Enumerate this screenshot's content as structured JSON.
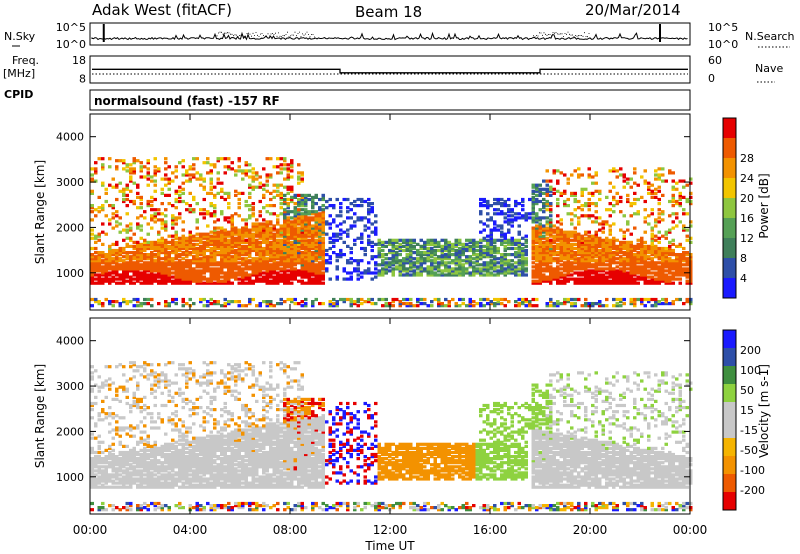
{
  "header": {
    "station": "Adak West (fitACF)",
    "beam": "Beam 18",
    "date": "20/Mar/2014"
  },
  "side_labels": {
    "nsky": "N.Sky",
    "nsearch": "N.Search",
    "freq": "Freq.",
    "freq_unit": "[MHz]",
    "nave": "Nave",
    "cpid": "CPID"
  },
  "cpid_text": "normalsound (fast) -157 RF",
  "colors": {
    "power_scale": [
      "#1a1aff",
      "#2e4fa8",
      "#3f7f5a",
      "#55a055",
      "#8ec63f",
      "#f2c500",
      "#f39200",
      "#ee5a00",
      "#e60000"
    ],
    "velocity_scale": [
      "#e60000",
      "#ee5a00",
      "#f39200",
      "#f5b400",
      "#c8c8c8",
      "#c8c8c8",
      "#8ed23f",
      "#3f8f3f",
      "#2e4fa8",
      "#1a1aff"
    ],
    "gray": "#c8c8c8"
  },
  "chart_data": [
    {
      "type": "line",
      "panel": "noise",
      "left_ticks": [
        "10^5",
        "10^0"
      ],
      "right_ticks": [
        "10^5",
        "10^0"
      ]
    },
    {
      "type": "line",
      "panel": "frequency",
      "left_ticks": [
        "18",
        "8"
      ],
      "right_ticks": [
        "60",
        "0"
      ],
      "series": [
        {
          "x": [
            "00:00",
            "10:00",
            "10:00",
            "18:00",
            "18:00",
            "24:00"
          ],
          "values": [
            12.9,
            12.9,
            11.0,
            11.0,
            12.9,
            12.9
          ]
        }
      ]
    },
    {
      "type": "heatmap",
      "panel": "power",
      "ylabel": "Slant Range [km]",
      "ylim": [
        180,
        4500
      ],
      "yticks": [
        "1000",
        "2000",
        "3000",
        "4000"
      ],
      "colorbar_label": "Power [dB]",
      "colorbar_ticks": [
        "4",
        "8",
        "12",
        "16",
        "20",
        "24",
        "28"
      ]
    },
    {
      "type": "heatmap",
      "panel": "velocity",
      "ylabel": "Slant Range [km]",
      "ylim": [
        180,
        4500
      ],
      "yticks": [
        "1000",
        "2000",
        "3000",
        "4000"
      ],
      "colorbar_label": "Velocity [m s-1]",
      "colorbar_ticks": [
        "200",
        "100",
        "50",
        "15",
        "-15",
        "-50",
        "-100",
        "-200"
      ],
      "xlabel": "Time UT",
      "xticks": [
        "00:00",
        "04:00",
        "08:00",
        "12:00",
        "16:00",
        "20:00",
        "00:00"
      ]
    }
  ]
}
